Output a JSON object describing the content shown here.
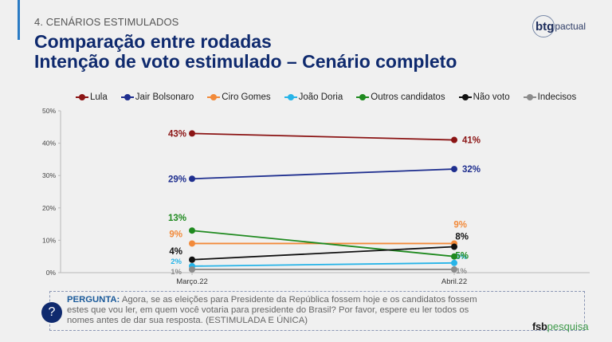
{
  "header": {
    "section": "4. CENÁRIOS ESTIMULADOS",
    "title_line1": "Comparação entre rodadas",
    "title_line2": "Intenção de voto estimulado – Cenário completo"
  },
  "logos": {
    "top_right_bold": "btg",
    "top_right_light": "pactual",
    "bottom_right_bold": "fsb",
    "bottom_right_light": "pesquisa"
  },
  "question": {
    "icon": "question-mark-icon",
    "icon_glyph": "?",
    "label": "PERGUNTA:",
    "text": " Agora, se as eleições para Presidente da República fossem hoje e os candidatos fossem estes que vou ler, em quem você votaria para presidente do Brasil? Por favor, espere eu ler todos os nomes antes de dar sua resposta. (ESTIMULADA E ÚNICA)"
  },
  "chart_data": {
    "type": "line",
    "title": "Intenção de voto estimulado – Cenário completo",
    "xlabel": "",
    "ylabel": "",
    "categories": [
      "Março.22",
      "Abril.22"
    ],
    "ylim": [
      0,
      50
    ],
    "yticks": [
      0,
      10,
      20,
      30,
      40,
      50
    ],
    "ytick_labels": [
      "0%",
      "10%",
      "20%",
      "30%",
      "40%",
      "50%"
    ],
    "grid": false,
    "legend_position": "top",
    "series": [
      {
        "name": "Lula",
        "color": "#8b1414",
        "values": [
          43,
          41
        ],
        "labels": [
          "43%",
          "41%"
        ]
      },
      {
        "name": "Jair Bolsonaro",
        "color": "#1f2f8f",
        "values": [
          29,
          32
        ],
        "labels": [
          "29%",
          "32%"
        ]
      },
      {
        "name": "Ciro Gomes",
        "color": "#f28a3a",
        "values": [
          9,
          9
        ],
        "labels": [
          "9%",
          "9%"
        ]
      },
      {
        "name": "João Doria",
        "color": "#27b4e8",
        "values": [
          2,
          3
        ],
        "labels": [
          "2%",
          "3%"
        ]
      },
      {
        "name": "Outros candidatos",
        "color": "#1f8a1f",
        "values": [
          13,
          5
        ],
        "labels": [
          "13%",
          "5%"
        ]
      },
      {
        "name": "Não voto",
        "color": "#111111",
        "values": [
          4,
          8
        ],
        "labels": [
          "4%",
          "8%"
        ]
      },
      {
        "name": "Indecisos",
        "color": "#8c8c8c",
        "values": [
          1,
          1
        ],
        "labels": [
          "1%",
          "1%"
        ]
      }
    ]
  }
}
